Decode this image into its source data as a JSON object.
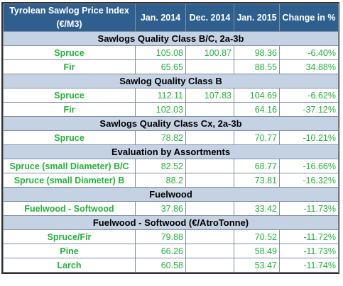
{
  "header": {
    "title_line1": "Tyrolean Sawlog Price Index",
    "title_line2": "(€/M3)",
    "col1": "Jan. 2014",
    "col2": "Dec. 2014",
    "col3": "Jan. 2015",
    "col4": "Change in %"
  },
  "sections": [
    {
      "title": "Sawlogs Quality Class B/C, 2a-3b",
      "rows": [
        {
          "label": "Spruce",
          "jan2014": "105.08",
          "dec2014": "100.87",
          "jan2015": "98.36",
          "change": "-6.40%"
        },
        {
          "label": "Fir",
          "jan2014": "65.65",
          "dec2014": "",
          "jan2015": "88.55",
          "change": "34.88%"
        }
      ]
    },
    {
      "title": "Sawlog Quality Class B",
      "rows": [
        {
          "label": "Spruce",
          "jan2014": "112.11",
          "dec2014": "107.83",
          "jan2015": "104.69",
          "change": "-6.62%"
        },
        {
          "label": "Fir",
          "jan2014": "102.03",
          "dec2014": "",
          "jan2015": "64.16",
          "change": "-37.12%"
        }
      ]
    },
    {
      "title": "Sawlogs Quality Class Cx, 2a-3b",
      "rows": [
        {
          "label": "Spruce",
          "jan2014": "78.82",
          "dec2014": "",
          "jan2015": "70.77",
          "change": "-10.21%"
        }
      ]
    },
    {
      "title": "Evaluation by Assortments",
      "rows": [
        {
          "label": "Spruce (small Diameter) B/C",
          "jan2014": "82.52",
          "dec2014": "",
          "jan2015": "68.77",
          "change": "-16.66%"
        },
        {
          "label": "Spruce (small Diameter) B",
          "jan2014": "88.2",
          "dec2014": "",
          "jan2015": "73.81",
          "change": "-16.32%"
        }
      ]
    },
    {
      "title": "Fuelwood",
      "rows": [
        {
          "label": "Fuelwood - Softwood",
          "jan2014": "37.86",
          "dec2014": "",
          "jan2015": "33.42",
          "change": "-11.73%"
        }
      ]
    },
    {
      "title": "Fuelwood - Softwood (€/AtroTonne)",
      "rows": [
        {
          "label": "Spruce/Fir",
          "jan2014": "79.88",
          "dec2014": "",
          "jan2015": "70.52",
          "change": "-11.72%"
        },
        {
          "label": "Pine",
          "jan2014": "66.26",
          "dec2014": "",
          "jan2015": "58.49",
          "change": "-11.73%"
        },
        {
          "label": "Larch",
          "jan2014": "60.58",
          "dec2014": "",
          "jan2015": "53.47",
          "change": "-11.74%"
        }
      ]
    }
  ],
  "colors": {
    "header_bg": "#2f5f8f",
    "section_bg": "#c5d2e3",
    "value_text": "#23b23b"
  }
}
